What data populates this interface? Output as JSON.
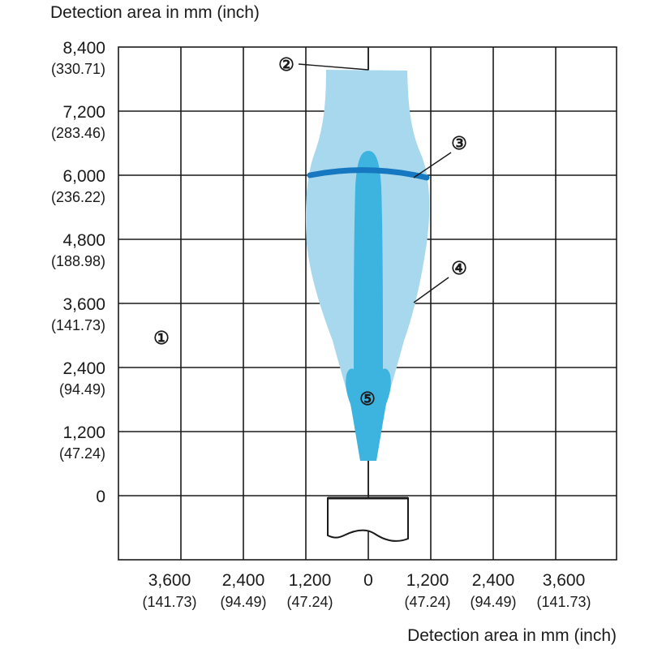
{
  "top_label": "Detection area in mm (inch)",
  "bottom_label": "Detection area in mm (inch)",
  "y_ticks": [
    {
      "value": "8,400",
      "sub": "(330.71)"
    },
    {
      "value": "7,200",
      "sub": "(283.46)"
    },
    {
      "value": "6,000",
      "sub": "(236.22)"
    },
    {
      "value": "4,800",
      "sub": "(188.98)"
    },
    {
      "value": "3,600",
      "sub": "(141.73)"
    },
    {
      "value": "2,400",
      "sub": "(94.49)"
    },
    {
      "value": "1,200",
      "sub": "(47.24)"
    },
    {
      "value": "0",
      "sub": ""
    }
  ],
  "x_ticks": [
    {
      "value": "3,600",
      "sub": "(141.73)"
    },
    {
      "value": "2,400",
      "sub": "(94.49)"
    },
    {
      "value": "1,200",
      "sub": "(47.24)"
    },
    {
      "value": "0",
      "sub": ""
    },
    {
      "value": "1,200",
      "sub": "(47.24)"
    },
    {
      "value": "2,400",
      "sub": "(94.49)"
    },
    {
      "value": "3,600",
      "sub": "(141.73)"
    }
  ],
  "callouts": {
    "c1": "①",
    "c2": "②",
    "c3": "③",
    "c4": "④",
    "c5": "⑤"
  },
  "colors": {
    "grid": "#1a1a1a",
    "outer_field": "#a8d8ee",
    "inner_field": "#3db3e0",
    "arc": "#1578c0"
  }
}
